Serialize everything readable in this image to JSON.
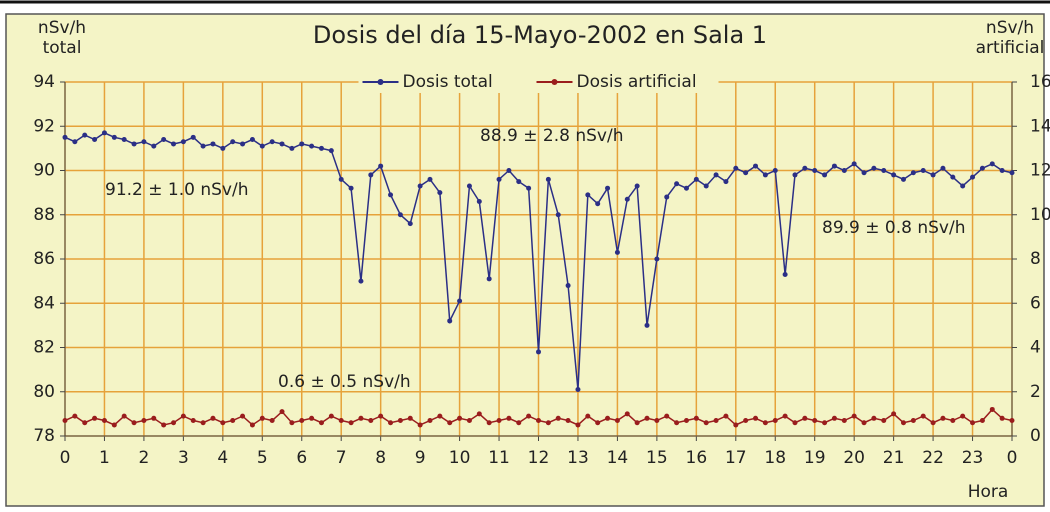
{
  "chart_data": {
    "type": "line",
    "title": "Dosis del día 15-Mayo-2002 en Sala 1",
    "ylabel": [
      "nSv/h",
      "total"
    ],
    "y2label": [
      "nSv/h",
      "artificial"
    ],
    "xlabel": "Hora",
    "annotations": [
      "91.2 ± 1.0 nSv/h",
      "88.9 ± 2.8 nSv/h",
      "89.9 ± 0.8 nSv/h",
      "0.6 ± 0.5 nSv/h"
    ],
    "x": [
      0,
      0.25,
      0.5,
      0.75,
      1,
      1.25,
      1.5,
      1.75,
      2,
      2.25,
      2.5,
      2.75,
      3,
      3.25,
      3.5,
      3.75,
      4,
      4.25,
      4.5,
      4.75,
      5,
      5.25,
      5.5,
      5.75,
      6,
      6.25,
      6.5,
      6.75,
      7,
      7.25,
      7.5,
      7.75,
      8,
      8.25,
      8.5,
      8.75,
      9,
      9.25,
      9.5,
      9.75,
      10,
      10.25,
      10.5,
      10.75,
      11,
      11.25,
      11.5,
      11.75,
      12,
      12.25,
      12.5,
      12.75,
      13,
      13.25,
      13.5,
      13.75,
      14,
      14.25,
      14.5,
      14.75,
      15,
      15.25,
      15.5,
      15.75,
      16,
      16.25,
      16.5,
      16.75,
      17,
      17.25,
      17.5,
      17.75,
      18,
      18.25,
      18.5,
      18.75,
      19,
      19.25,
      19.5,
      19.75,
      20,
      20.25,
      20.5,
      20.75,
      21,
      21.25,
      21.5,
      21.75,
      22,
      22.25,
      22.5,
      22.75,
      23,
      23.25,
      23.5,
      23.75,
      24
    ],
    "series": [
      {
        "name": "Dosis total",
        "color": "#2b2f86",
        "axis": "y",
        "values": [
          91.5,
          91.3,
          91.6,
          91.4,
          91.7,
          91.5,
          91.4,
          91.2,
          91.3,
          91.1,
          91.4,
          91.2,
          91.3,
          91.5,
          91.1,
          91.2,
          91.0,
          91.3,
          91.2,
          91.4,
          91.1,
          91.3,
          91.2,
          91.0,
          91.2,
          91.1,
          91.0,
          90.9,
          89.6,
          89.2,
          85.0,
          89.8,
          90.2,
          88.9,
          88.0,
          87.6,
          89.3,
          89.6,
          89.0,
          83.2,
          84.1,
          89.3,
          88.6,
          85.1,
          89.6,
          90.0,
          89.5,
          89.2,
          81.8,
          89.6,
          88.0,
          84.8,
          80.1,
          88.9,
          88.5,
          89.2,
          86.3,
          88.7,
          89.3,
          83.0,
          86.0,
          88.8,
          89.4,
          89.2,
          89.6,
          89.3,
          89.8,
          89.5,
          90.1,
          89.9,
          90.2,
          89.8,
          90.0,
          85.3,
          89.8,
          90.1,
          90.0,
          89.8,
          90.2,
          90.0,
          90.3,
          89.9,
          90.1,
          90.0,
          89.8,
          89.6,
          89.9,
          90.0,
          89.8,
          90.1,
          89.7,
          89.3,
          89.7,
          90.1,
          90.3,
          90.0,
          89.9
        ]
      },
      {
        "name": "Dosis artificial",
        "color": "#9a1d1d",
        "axis": "y2",
        "values": [
          0.7,
          0.9,
          0.6,
          0.8,
          0.7,
          0.5,
          0.9,
          0.6,
          0.7,
          0.8,
          0.5,
          0.6,
          0.9,
          0.7,
          0.6,
          0.8,
          0.6,
          0.7,
          0.9,
          0.5,
          0.8,
          0.7,
          1.1,
          0.6,
          0.7,
          0.8,
          0.6,
          0.9,
          0.7,
          0.6,
          0.8,
          0.7,
          0.9,
          0.6,
          0.7,
          0.8,
          0.5,
          0.7,
          0.9,
          0.6,
          0.8,
          0.7,
          1.0,
          0.6,
          0.7,
          0.8,
          0.6,
          0.9,
          0.7,
          0.6,
          0.8,
          0.7,
          0.5,
          0.9,
          0.6,
          0.8,
          0.7,
          1.0,
          0.6,
          0.8,
          0.7,
          0.9,
          0.6,
          0.7,
          0.8,
          0.6,
          0.7,
          0.9,
          0.5,
          0.7,
          0.8,
          0.6,
          0.7,
          0.9,
          0.6,
          0.8,
          0.7,
          0.6,
          0.8,
          0.7,
          0.9,
          0.6,
          0.8,
          0.7,
          1.0,
          0.6,
          0.7,
          0.9,
          0.6,
          0.8,
          0.7,
          0.9,
          0.6,
          0.7,
          1.2,
          0.8,
          0.7
        ]
      }
    ],
    "xlim": [
      0,
      24
    ],
    "xticks": [
      0,
      1,
      2,
      3,
      4,
      5,
      6,
      7,
      8,
      9,
      10,
      11,
      12,
      13,
      14,
      15,
      16,
      17,
      18,
      19,
      20,
      21,
      22,
      23,
      {
        "value": 24,
        "label": "0"
      }
    ],
    "ylim": [
      78,
      94
    ],
    "yticks": [
      78,
      80,
      82,
      84,
      86,
      88,
      90,
      92,
      94
    ],
    "y2lim": [
      0,
      16
    ],
    "y2ticks": [
      0,
      2,
      4,
      6,
      8,
      10,
      12,
      14,
      16
    ],
    "grid": true,
    "grid_color": "#e6a23a",
    "legend": "top"
  }
}
